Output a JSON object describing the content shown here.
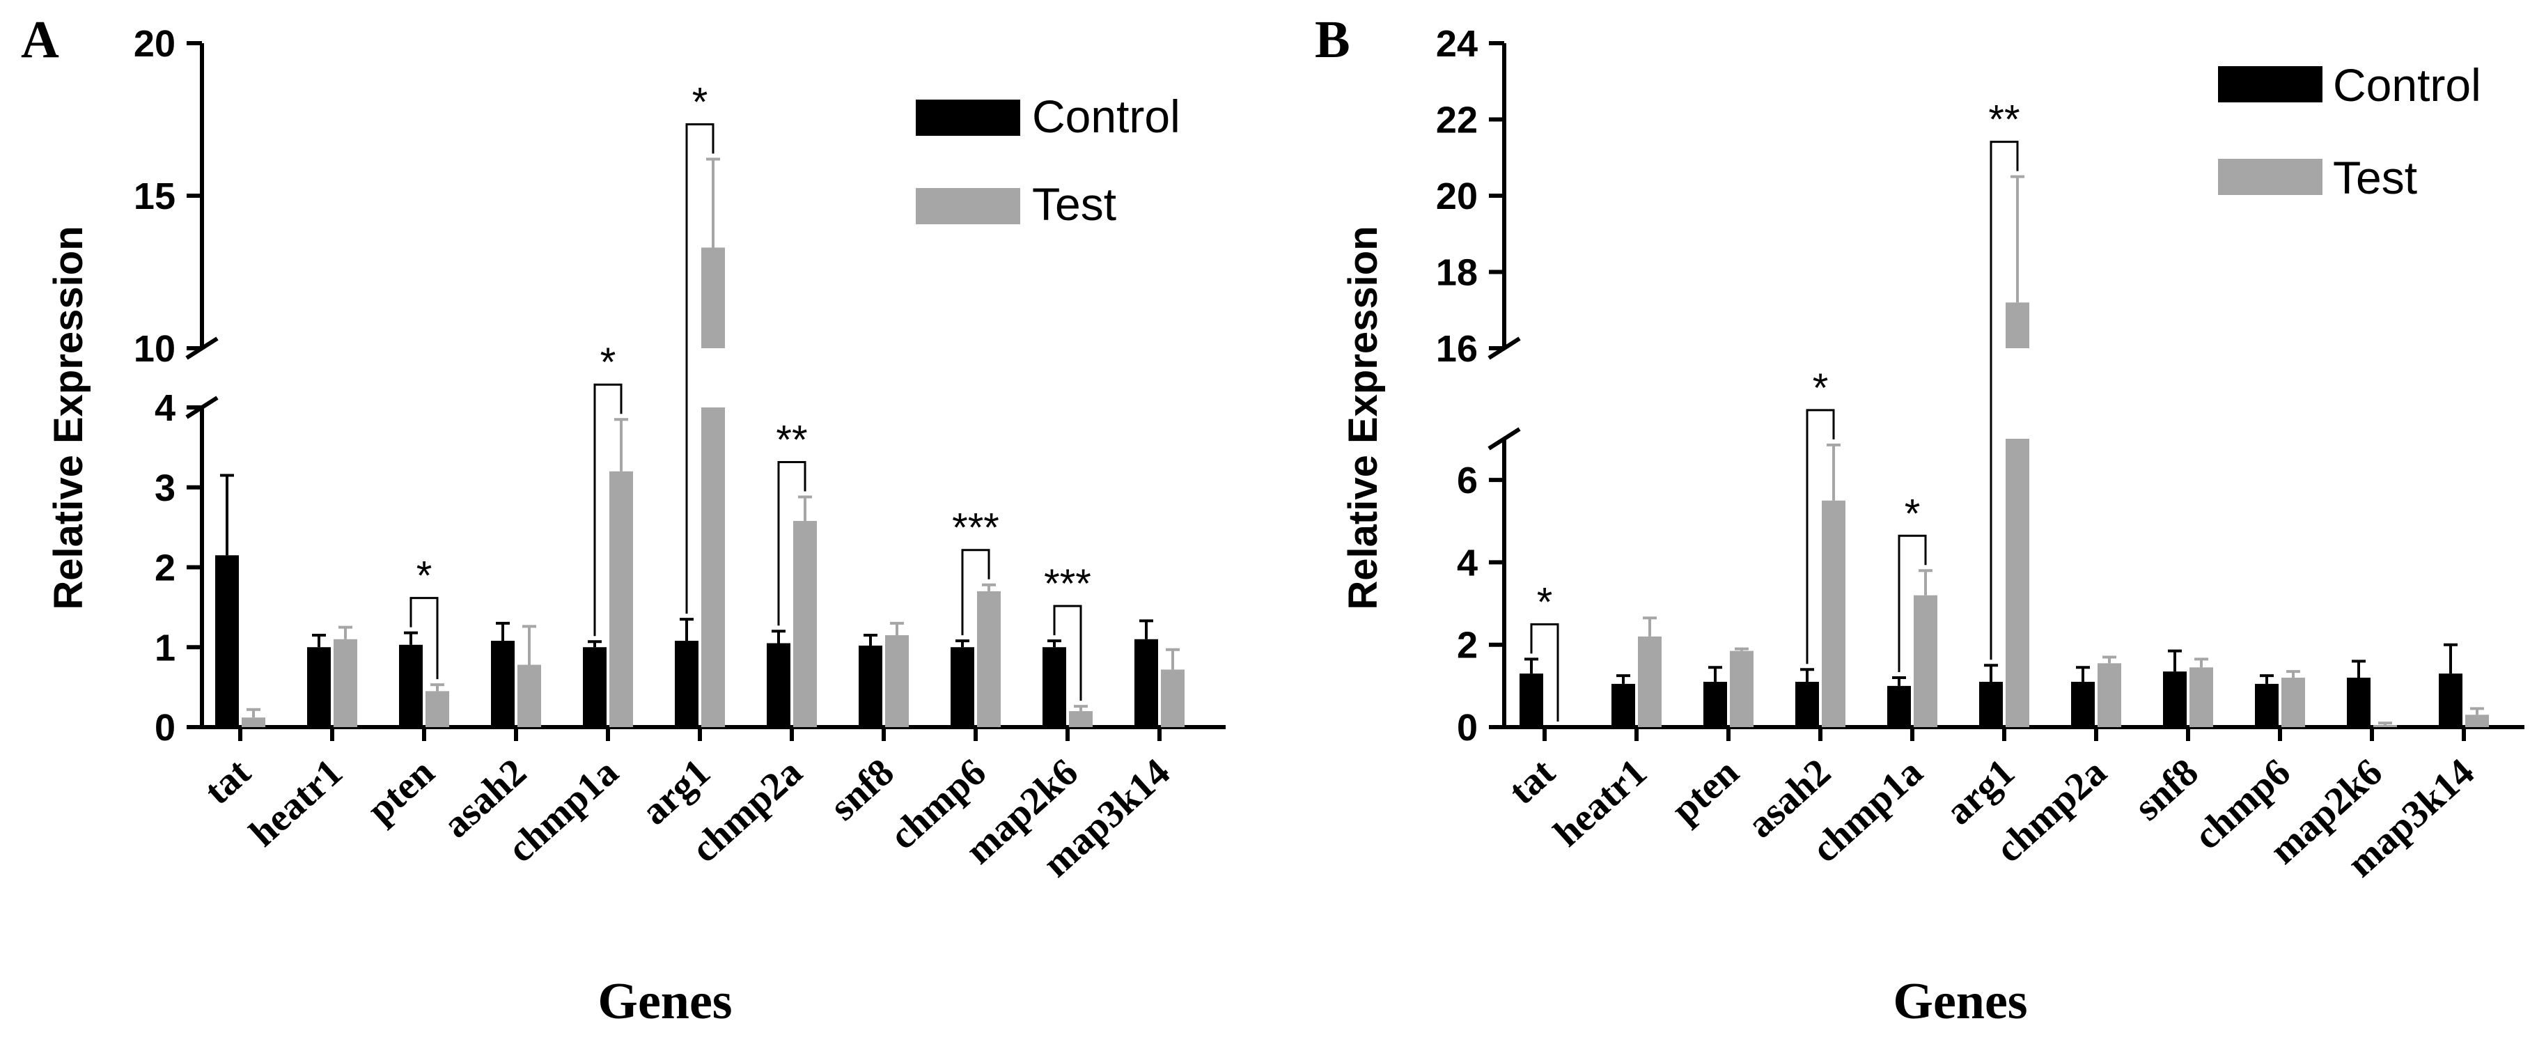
{
  "chart_data": [
    {
      "panel": "A",
      "type": "bar",
      "ylabel": "Relative Expression",
      "xlabel": "Genes",
      "categories": [
        "tat",
        "heatr1",
        "pten",
        "asah2",
        "chmp1a",
        "arg1",
        "chmp2a",
        "snf8",
        "chmp6",
        "map2k6",
        "map3k14"
      ],
      "series": [
        {
          "name": "Control",
          "color": "#000000",
          "values": [
            2.15,
            1.0,
            1.03,
            1.08,
            1.0,
            1.08,
            1.05,
            1.02,
            1.0,
            1.0,
            1.1
          ],
          "errors": [
            1.0,
            0.15,
            0.15,
            0.22,
            0.07,
            0.27,
            0.15,
            0.13,
            0.08,
            0.08,
            0.23
          ]
        },
        {
          "name": "Test",
          "color": "#a6a6a6",
          "values": [
            0.12,
            1.1,
            0.45,
            0.78,
            3.2,
            13.3,
            2.58,
            1.15,
            1.7,
            0.2,
            0.72
          ],
          "errors": [
            0.1,
            0.15,
            0.08,
            0.48,
            0.65,
            2.9,
            0.3,
            0.15,
            0.08,
            0.06,
            0.25
          ]
        }
      ],
      "axis_segments": [
        {
          "range": [
            0,
            4
          ],
          "ticks": [
            0,
            1,
            2,
            3,
            4
          ]
        },
        {
          "range": [
            10,
            20
          ],
          "ticks": [
            10,
            15,
            20
          ]
        }
      ],
      "significance": [
        {
          "category": "pten",
          "label": "*"
        },
        {
          "category": "chmp1a",
          "label": "*"
        },
        {
          "category": "arg1",
          "label": "*"
        },
        {
          "category": "chmp2a",
          "label": "**"
        },
        {
          "category": "chmp6",
          "label": "***"
        },
        {
          "category": "map2k6",
          "label": "***"
        }
      ],
      "legend": [
        "Control",
        "Test"
      ]
    },
    {
      "panel": "B",
      "type": "bar",
      "ylabel": "Relative Expression",
      "xlabel": "Genes",
      "categories": [
        "tat",
        "heatr1",
        "pten",
        "asah2",
        "chmp1a",
        "arg1",
        "chmp2a",
        "snf8",
        "chmp6",
        "map2k6",
        "map3k14"
      ],
      "series": [
        {
          "name": "Control",
          "color": "#000000",
          "values": [
            1.3,
            1.05,
            1.1,
            1.1,
            1.0,
            1.1,
            1.1,
            1.35,
            1.05,
            1.2,
            1.3
          ],
          "errors": [
            0.35,
            0.2,
            0.35,
            0.3,
            0.2,
            0.4,
            0.35,
            0.5,
            0.2,
            0.4,
            0.7
          ]
        },
        {
          "name": "Test",
          "color": "#a6a6a6",
          "values": [
            0.0,
            2.2,
            1.85,
            5.5,
            3.2,
            17.2,
            1.55,
            1.45,
            1.2,
            0.05,
            0.3
          ],
          "errors": [
            0.0,
            0.45,
            0.05,
            1.35,
            0.6,
            3.3,
            0.15,
            0.2,
            0.15,
            0.05,
            0.15
          ]
        }
      ],
      "axis_segments": [
        {
          "range": [
            0,
            7
          ],
          "ticks": [
            0,
            2,
            4,
            6
          ]
        },
        {
          "range": [
            16,
            24
          ],
          "ticks": [
            16,
            18,
            20,
            22,
            24
          ]
        }
      ],
      "significance": [
        {
          "category": "tat",
          "label": "*"
        },
        {
          "category": "asah2",
          "label": "*"
        },
        {
          "category": "chmp1a",
          "label": "*"
        },
        {
          "category": "arg1",
          "label": "**"
        }
      ],
      "legend": [
        "Control",
        "Test"
      ]
    }
  ]
}
